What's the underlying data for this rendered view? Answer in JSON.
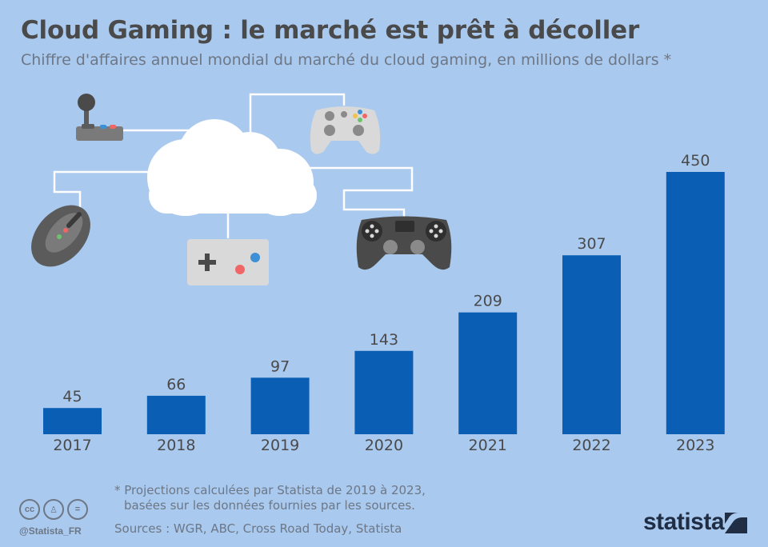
{
  "header": {
    "title": "Cloud Gaming : le marché est prêt à décoller",
    "subtitle": "Chiffre d'affaires annuel mondial du marché du cloud gaming, en millions de dollars *"
  },
  "chart_data": {
    "type": "bar",
    "title": "Cloud Gaming : le marché est prêt à décoller",
    "subtitle": "Chiffre d'affaires annuel mondial du marché du cloud gaming, en millions de dollars *",
    "categories": [
      "2017",
      "2018",
      "2019",
      "2020",
      "2021",
      "2022",
      "2023"
    ],
    "values": [
      45,
      66,
      97,
      143,
      209,
      307,
      450
    ],
    "ylim": [
      0,
      450
    ],
    "bar_color": "#0a5fb4",
    "grid": false,
    "data_labels": true
  },
  "footer": {
    "note_line1": "* Projections calculées par Statista de 2019 à 2023,",
    "note_line2": "basées sur les données fournies par les sources.",
    "sources": "Sources : WGR, ABC, Cross Road Today, Statista",
    "handle": "@Statista_FR",
    "brand": "statista",
    "license_icons": [
      "cc-icon",
      "attribution-icon",
      "no-derivatives-icon"
    ]
  },
  "colors": {
    "background": "#a9c9ef",
    "bar": "#0a5fb4",
    "text_dark": "#4a4a4a",
    "text_muted": "#6d7785",
    "brand": "#1f2d45"
  },
  "illustration": {
    "icons": [
      "cloud-icon",
      "arcade-joystick-icon",
      "xbox-controller-icon",
      "gaming-mouse-icon",
      "retro-gamepad-icon",
      "playstation-controller-icon"
    ]
  }
}
